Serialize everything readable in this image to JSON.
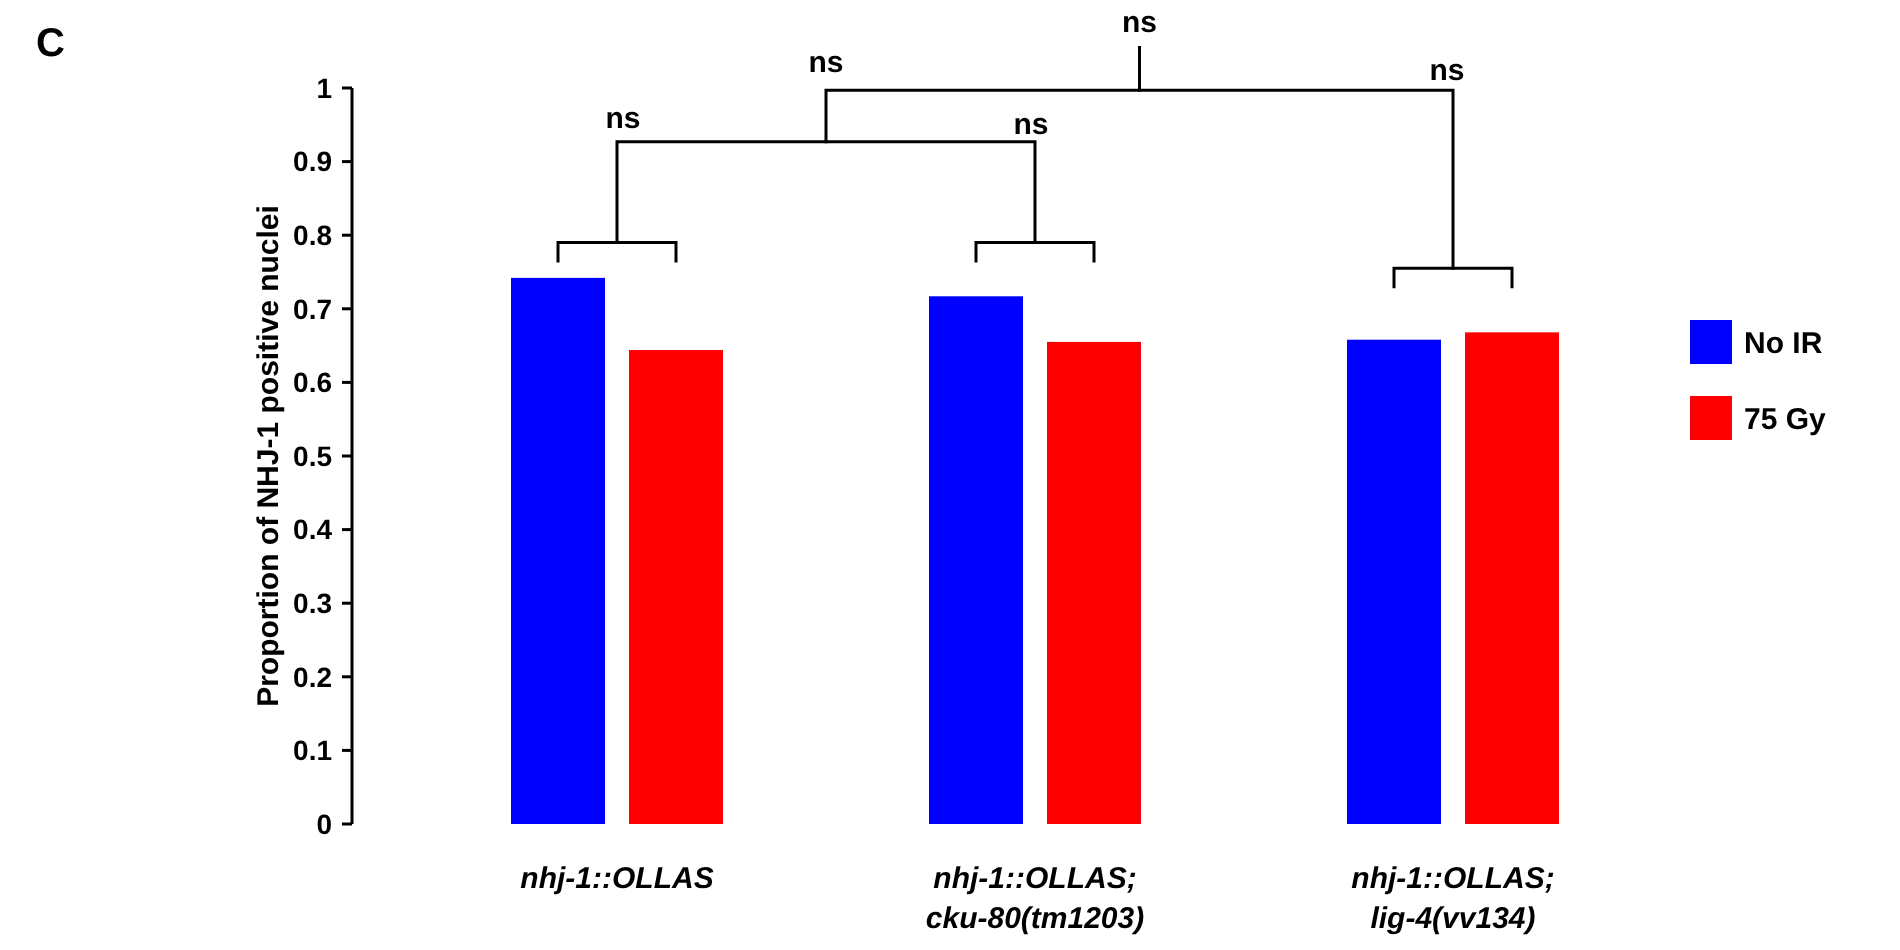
{
  "chart_data": {
    "type": "bar",
    "ylabel": "Proportion of NHJ-1 positive nuclei",
    "categories": [
      "nhj-1::OLLAS",
      "nhj-1::OLLAS;\ncku-80(tm1203)",
      "nhj-1::OLLAS;\nlig-4(vv134)"
    ],
    "series": [
      {
        "name": "No IR",
        "color": "#0000ff",
        "values": [
          0.742,
          0.717,
          0.658
        ]
      },
      {
        "name": "75 Gy",
        "color": "#ff0000",
        "values": [
          0.644,
          0.655,
          0.668
        ]
      }
    ],
    "ylim": [
      0,
      1
    ],
    "yticks": [
      0,
      0.1,
      0.2,
      0.3,
      0.4,
      0.5,
      0.6,
      0.7,
      0.8,
      0.9,
      1
    ],
    "legend": "right",
    "annotations": [
      "C",
      "ns",
      "ns",
      "ns",
      "ns",
      "ns"
    ]
  }
}
